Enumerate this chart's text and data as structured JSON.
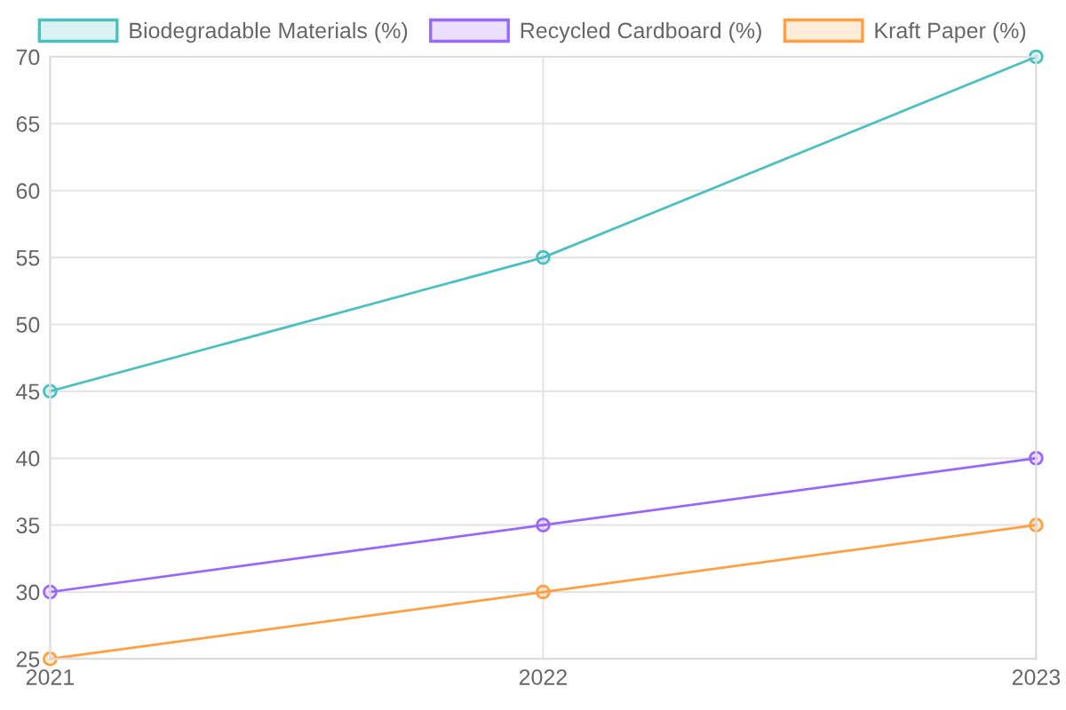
{
  "chart_data": {
    "type": "line",
    "categories": [
      "2021",
      "2022",
      "2023"
    ],
    "series": [
      {
        "name": "Biodegradable Materials (%)",
        "color": "#4bc0c0",
        "values": [
          45,
          55,
          70
        ]
      },
      {
        "name": "Recycled Cardboard (%)",
        "color": "#9966ff",
        "values": [
          30,
          35,
          40
        ]
      },
      {
        "name": "Kraft Paper (%)",
        "color": "#ff9f40",
        "values": [
          25,
          30,
          35
        ]
      }
    ],
    "ylim": [
      25,
      70
    ],
    "yticks": [
      25,
      30,
      35,
      40,
      45,
      50,
      55,
      60,
      65,
      70
    ],
    "grid": true,
    "legend": "top",
    "marker": "circle",
    "line_style": "solid"
  }
}
